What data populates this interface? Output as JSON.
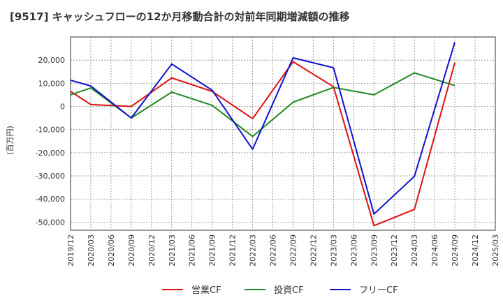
{
  "chart_data": {
    "type": "line",
    "title": "[9517]  キャッシュフローの12か月移動合計の対前年同期増減額の推移",
    "ylabel": "(百万円)",
    "xlabel": "",
    "ylim": [
      -53500,
      30000
    ],
    "yticks": [
      -50000,
      -40000,
      -30000,
      -20000,
      -10000,
      0,
      10000,
      20000
    ],
    "ytick_labels": [
      "-50,000",
      "-40,000",
      "-30,000",
      "-20,000",
      "-10,000",
      "0",
      "10,000",
      "20,000"
    ],
    "categories": [
      "2019/12",
      "2020/03",
      "2020/06",
      "2020/09",
      "2020/12",
      "2021/03",
      "2021/06",
      "2021/09",
      "2021/12",
      "2022/03",
      "2022/06",
      "2022/09",
      "2022/12",
      "2023/03",
      "2023/06",
      "2023/09",
      "2023/12",
      "2024/03",
      "2024/06",
      "2024/09",
      "2024/12",
      "2025/03"
    ],
    "grid": true,
    "legend_position": "bottom",
    "series": [
      {
        "name": "営業CF",
        "color": "#dd1111",
        "values": [
          6500,
          800,
          null,
          0,
          null,
          12300,
          null,
          6500,
          null,
          -5300,
          null,
          19300,
          null,
          8500,
          null,
          -51500,
          null,
          -44500,
          null,
          19000,
          null,
          null
        ]
      },
      {
        "name": "投資CF",
        "color": "#228822",
        "values": [
          5000,
          8000,
          null,
          -5000,
          null,
          6200,
          null,
          500,
          null,
          -13000,
          null,
          1800,
          null,
          8200,
          null,
          5000,
          null,
          14500,
          null,
          9000,
          null,
          null
        ]
      },
      {
        "name": "フリーCF",
        "color": "#1111cc",
        "values": [
          11300,
          8800,
          null,
          -5000,
          null,
          18300,
          null,
          7000,
          null,
          -18500,
          null,
          21000,
          null,
          16700,
          null,
          -46500,
          null,
          -30200,
          null,
          27800,
          null,
          null
        ]
      }
    ]
  }
}
